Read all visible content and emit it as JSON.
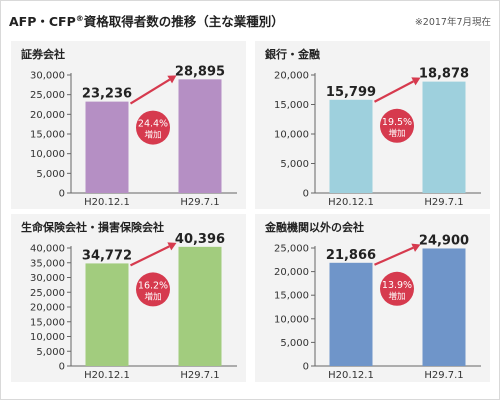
{
  "header": {
    "title_prefix": "AFP・CFP",
    "title_sup": "®",
    "title_suffix": "資格取得者数の推移（主な業種別）",
    "note": "※2017年7月現在"
  },
  "chart_data": [
    {
      "type": "bar",
      "title": "証券会社",
      "categories": [
        "H20.12.1",
        "H29.7.1"
      ],
      "values": [
        23236,
        28895
      ],
      "value_labels": [
        "23,236",
        "28,895"
      ],
      "ylim": [
        0,
        30000
      ],
      "yticks": [
        0,
        5000,
        10000,
        15000,
        20000,
        25000,
        30000
      ],
      "ytick_labels": [
        "0",
        "5,000",
        "10,000",
        "15,000",
        "20,000",
        "25,000",
        "30,000"
      ],
      "growth_value": "24.4%",
      "growth_label": "増加",
      "bar_color": "#b58fc4",
      "grid": false
    },
    {
      "type": "bar",
      "title": "銀行・金融",
      "categories": [
        "H20.12.1",
        "H29.7.1"
      ],
      "values": [
        15799,
        18878
      ],
      "value_labels": [
        "15,799",
        "18,878"
      ],
      "ylim": [
        0,
        20000
      ],
      "yticks": [
        0,
        5000,
        10000,
        15000,
        20000
      ],
      "ytick_labels": [
        "0",
        "5,000",
        "10,000",
        "15,000",
        "20,000"
      ],
      "growth_value": "19.5%",
      "growth_label": "増加",
      "bar_color": "#9ed0dd",
      "grid": false
    },
    {
      "type": "bar",
      "title": "生命保険会社・損害保険会社",
      "categories": [
        "H20.12.1",
        "H29.7.1"
      ],
      "values": [
        34772,
        40396
      ],
      "value_labels": [
        "34,772",
        "40,396"
      ],
      "ylim": [
        0,
        40000
      ],
      "yticks": [
        0,
        5000,
        10000,
        15000,
        20000,
        25000,
        30000,
        35000,
        40000
      ],
      "ytick_labels": [
        "0",
        "5,000",
        "10,000",
        "15,000",
        "20,000",
        "25,000",
        "30,000",
        "35,000",
        "40,000"
      ],
      "growth_value": "16.2%",
      "growth_label": "増加",
      "bar_color": "#a2cc7e",
      "grid": false
    },
    {
      "type": "bar",
      "title": "金融機関以外の会社",
      "categories": [
        "H20.12.1",
        "H29.7.1"
      ],
      "values": [
        21866,
        24900
      ],
      "value_labels": [
        "21,866",
        "24,900"
      ],
      "ylim": [
        0,
        25000
      ],
      "yticks": [
        0,
        5000,
        10000,
        15000,
        20000,
        25000
      ],
      "ytick_labels": [
        "0",
        "5,000",
        "10,000",
        "15,000",
        "20,000",
        "25,000"
      ],
      "growth_value": "13.9%",
      "growth_label": "増加",
      "bar_color": "#6f95c9",
      "grid": false
    }
  ],
  "colors": {
    "arrow": "#d63a4e",
    "badge": "#d63a4e",
    "badge_text": "#ffffff",
    "panel_bg": "#f3f3f3",
    "axis": "#666666"
  }
}
